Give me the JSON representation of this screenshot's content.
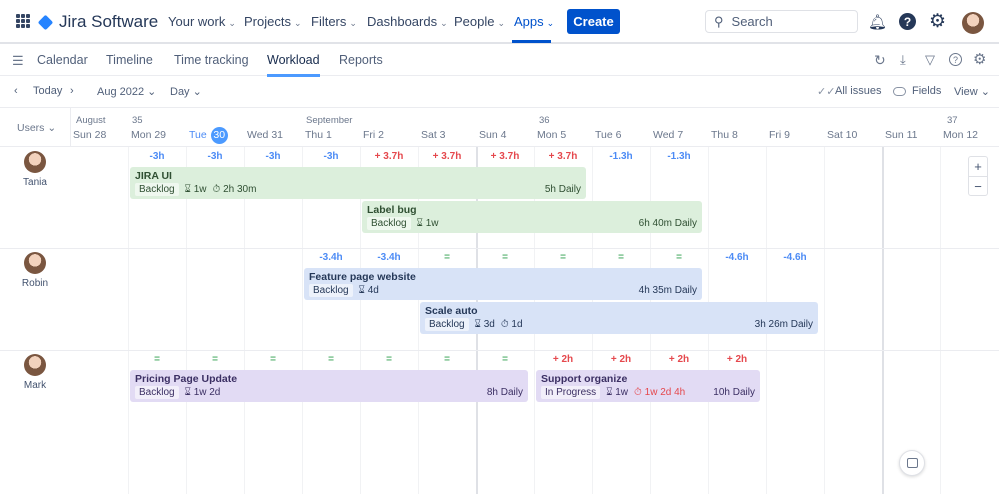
{
  "app": {
    "title": "Jira Software"
  },
  "nav": [
    {
      "label": "Your work"
    },
    {
      "label": "Projects"
    },
    {
      "label": "Filters"
    },
    {
      "label": "Dashboards"
    },
    {
      "label": "People"
    },
    {
      "label": "Apps",
      "active": true
    }
  ],
  "create_label": "Create",
  "search": {
    "placeholder": "Search"
  },
  "tabs": [
    {
      "label": "Calendar"
    },
    {
      "label": "Timeline"
    },
    {
      "label": "Time tracking"
    },
    {
      "label": "Workload",
      "active": true
    },
    {
      "label": "Reports"
    }
  ],
  "toolbar": {
    "today": "Today",
    "month": "Aug 2022",
    "scale": "Day",
    "all_issues": "All issues",
    "fields": "Fields",
    "view": "View",
    "users": "Users"
  },
  "header": {
    "month_aug": "August",
    "month_sep": "September",
    "week35": "35",
    "week36": "36",
    "week37": "37",
    "days": [
      "Sun 28",
      "Mon 29",
      "Tue",
      "Wed 31",
      "Thu 1",
      "Fri 2",
      "Sat 3",
      "Sun 4",
      "Mon 5",
      "Tue 6",
      "Wed 7",
      "Thu 8",
      "Fri 9",
      "Sat 10",
      "Sun 11",
      "Mon 12"
    ],
    "today_num": "30"
  },
  "colors": {
    "over": "#e5484d",
    "under": "#4c8bf5",
    "ok": "#57b26f",
    "green_bar": "#dcefdc",
    "blue_bar": "#d8e3f7",
    "purple_bar": "#e2dbf4",
    "accent": "#0052cc"
  },
  "users": [
    {
      "name": "Tania",
      "loads": [
        null,
        "-3h",
        "-3h",
        "-3h",
        "-3h",
        "+ 3.7h",
        "+ 3.7h",
        "+ 3.7h",
        "+ 3.7h",
        "-1.3h",
        "-1.3h",
        null,
        null,
        null,
        null,
        null
      ],
      "tasks": [
        {
          "title": "JIRA UI",
          "status": "Backlog",
          "estimate": "1w",
          "logged": "2h 30m",
          "daily": "5h Daily",
          "color": "green",
          "from": 1,
          "to": 8,
          "lane": 0
        },
        {
          "title": "Label bug",
          "status": "Backlog",
          "estimate": "1w",
          "daily": "6h 40m Daily",
          "color": "green",
          "from": 5,
          "to": 10,
          "lane": 1
        }
      ]
    },
    {
      "name": "Robin",
      "loads": [
        null,
        null,
        null,
        null,
        "-3.4h",
        "-3.4h",
        "=",
        "=",
        "=",
        "=",
        "=",
        "-4.6h",
        "-4.6h",
        null,
        null,
        null
      ],
      "tasks": [
        {
          "title": "Feature page website",
          "status": "Backlog",
          "estimate": "4d",
          "daily": "4h 35m Daily",
          "color": "blue",
          "from": 4,
          "to": 10,
          "lane": 0
        },
        {
          "title": "Scale auto",
          "status": "Backlog",
          "estimate": "3d",
          "logged": "1d",
          "daily": "3h 26m Daily",
          "color": "blue",
          "from": 6,
          "to": 12,
          "lane": 1
        }
      ]
    },
    {
      "name": "Mark",
      "loads": [
        null,
        "=",
        "=",
        "=",
        "=",
        "=",
        "=",
        "=",
        "+ 2h",
        "+ 2h",
        "+ 2h",
        "+ 2h",
        null,
        null,
        null,
        null
      ],
      "tasks": [
        {
          "title": "Pricing Page Update",
          "status": "Backlog",
          "estimate": "1w 2d",
          "daily": "8h Daily",
          "color": "purple",
          "from": 1,
          "to": 7,
          "lane": 0
        },
        {
          "title": "Support organize",
          "status": "In Progress",
          "estimate": "1w",
          "logged": "1w 2d 4h",
          "logged_over": true,
          "daily": "10h Daily",
          "color": "purple",
          "from": 8,
          "to": 11,
          "lane": 0
        }
      ]
    }
  ],
  "zoom": {
    "in": "+",
    "out": "−"
  }
}
